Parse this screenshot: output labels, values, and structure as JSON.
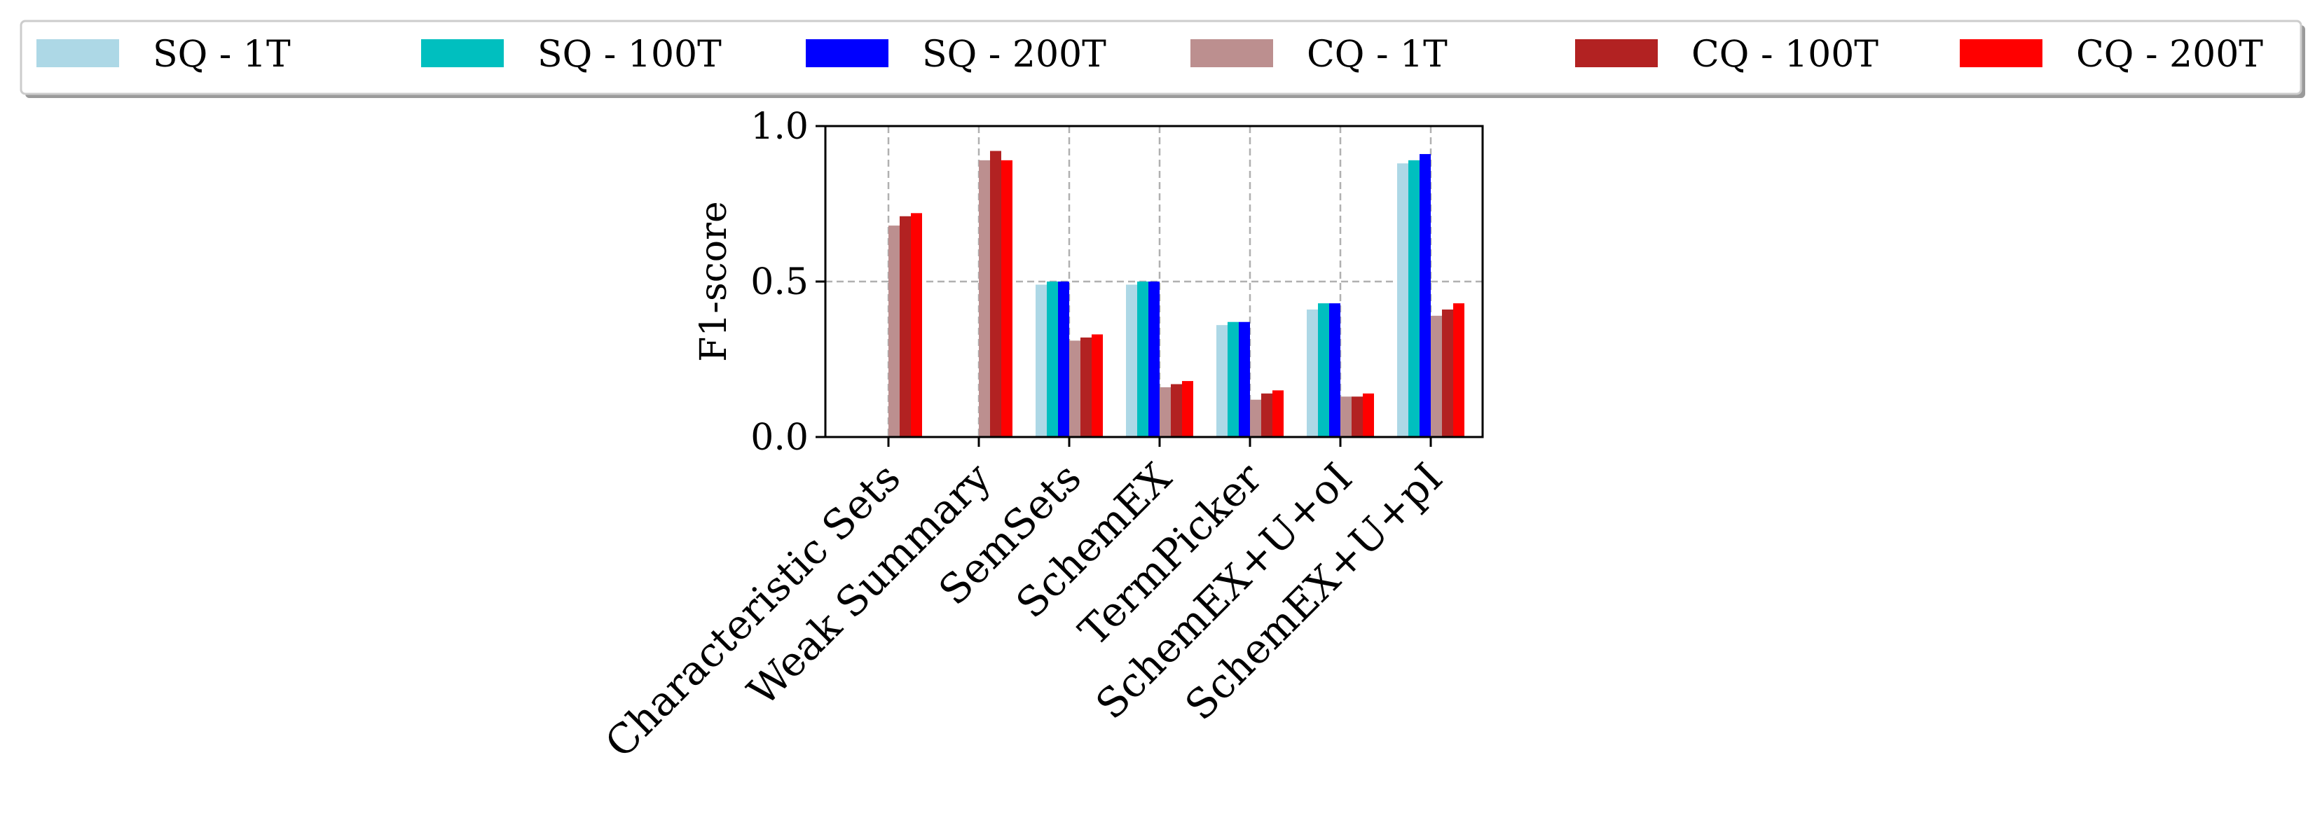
{
  "chart_data": {
    "type": "bar",
    "title": "",
    "xlabel": "",
    "ylabel": "F1-score",
    "ylim": [
      0,
      1.0
    ],
    "yticks": [
      "0.0",
      "0.5",
      "1.0"
    ],
    "grid": true,
    "legend_position": "top",
    "categories": [
      "Characteristic Sets",
      "Weak Summary",
      "SemSets",
      "SchemEX",
      "TermPicker",
      "SchemEX+U+oI",
      "SchemEX+U+pI"
    ],
    "series": [
      {
        "name": "SQ - 1T",
        "color": "#add8e6",
        "values": [
          0,
          0,
          0.49,
          0.49,
          0.36,
          0.41,
          0.88
        ]
      },
      {
        "name": "SQ - 100T",
        "color": "#00bfbf",
        "values": [
          0,
          0,
          0.5,
          0.5,
          0.37,
          0.43,
          0.89
        ]
      },
      {
        "name": "SQ - 200T",
        "color": "#0000ff",
        "values": [
          0,
          0,
          0.5,
          0.5,
          0.37,
          0.43,
          0.91
        ]
      },
      {
        "name": "CQ - 1T",
        "color": "#bc8f8f",
        "values": [
          0.68,
          0.89,
          0.31,
          0.16,
          0.12,
          0.13,
          0.39
        ]
      },
      {
        "name": "CQ - 100T",
        "color": "#b22222",
        "values": [
          0.71,
          0.92,
          0.32,
          0.17,
          0.14,
          0.13,
          0.41
        ]
      },
      {
        "name": "CQ - 200T",
        "color": "#ff0000",
        "values": [
          0.72,
          0.89,
          0.33,
          0.18,
          0.15,
          0.14,
          0.43
        ]
      }
    ]
  }
}
